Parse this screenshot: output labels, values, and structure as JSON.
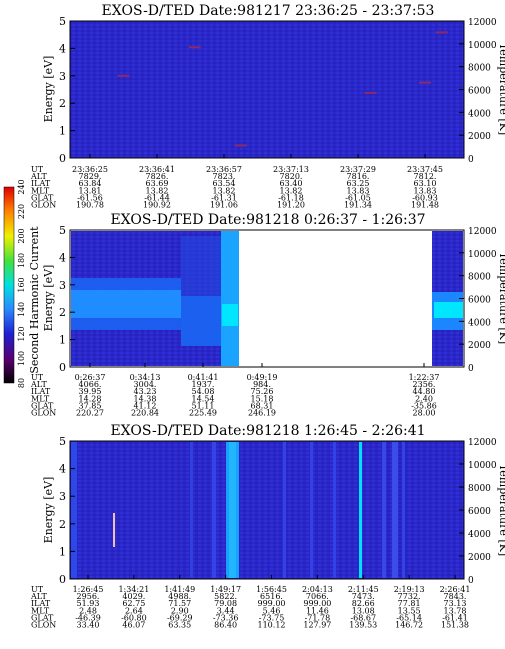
{
  "chart_data": [
    {
      "type": "heatmap",
      "title": "EXOS-D/TED   Date:981217  23:36:25 - 23:37:53",
      "ylabel": "Energy [eV]",
      "ylabel_right": "Temperature [K]",
      "ylim": [
        0,
        5
      ],
      "yticks": [
        "0",
        "1",
        "2",
        "3",
        "4",
        "5"
      ],
      "ylim_right": [
        0,
        12000
      ],
      "yticks_right": [
        "0",
        "2000",
        "4000",
        "6000",
        "8000",
        "10000",
        "12000"
      ],
      "ephemeris": {
        "labels": [
          "UT",
          "ALT",
          "ILAT",
          "MLT",
          "GLAT",
          "GLON"
        ],
        "columns": [
          [
            "23:36:25",
            "7829.",
            "63.84",
            "13.81",
            "-61.56",
            "190.78"
          ],
          [
            "23:36:41",
            "7826.",
            "63.69",
            "13.82",
            "-61.44",
            "190.92"
          ],
          [
            "23:36:57",
            "7823.",
            "63.54",
            "13.82",
            "-61.31",
            "191.06"
          ],
          [
            "23:37:13",
            "7820.",
            "63.40",
            "13.82",
            "-61.18",
            "191.20"
          ],
          [
            "23:37:29",
            "7816.",
            "63.25",
            "13.83",
            "-61.05",
            "191.34"
          ],
          [
            "23:37:45",
            "7812.",
            "63.10",
            "13.83",
            "-60.93",
            "191.48"
          ]
        ]
      },
      "description": "nearly uniform low intensity background with a few isolated point markers",
      "temperature_points": [
        {
          "ut": "23:36:33",
          "t": 7200
        },
        {
          "ut": "23:36:50",
          "t": 9700
        },
        {
          "ut": "23:37:01",
          "t": 1100
        },
        {
          "ut": "23:37:32",
          "t": 5700
        },
        {
          "ut": "23:37:45",
          "t": 6600
        },
        {
          "ut": "23:37:49",
          "t": 11000
        }
      ]
    },
    {
      "type": "heatmap",
      "title": "EXOS-D/TED   Date:981218  0:26:37 - 1:26:37",
      "ylabel": "Energy [eV]",
      "ylabel_right": "Temperature [K]",
      "ylim": [
        0,
        5
      ],
      "yticks": [
        "0",
        "1",
        "2",
        "3",
        "4",
        "5"
      ],
      "ylim_right": [
        0,
        12000
      ],
      "yticks_right": [
        "0",
        "2000",
        "4000",
        "6000",
        "8000",
        "10000",
        "12000"
      ],
      "colorbar": {
        "label": "Second Harmonic Current",
        "ticks": [
          "80",
          "100",
          "120",
          "140",
          "160",
          "180",
          "200",
          "220",
          "240"
        ]
      },
      "ephemeris": {
        "labels": [
          "UT",
          "ALT",
          "ILAT",
          "MLT",
          "GLAT",
          "GLON"
        ],
        "columns": [
          [
            "0:26:37",
            "4066.",
            "39.95",
            "14.28",
            "37.85",
            "220.27"
          ],
          [
            "0:34:13",
            "3004.",
            "43.23",
            "14.38",
            "41.12",
            "220.84"
          ],
          [
            "0:41:41",
            "1937.",
            "54.08",
            "14.54",
            "51.11",
            "225.49"
          ],
          [
            "0:49:19",
            "984.",
            "75.26",
            "15.18",
            "68.31",
            "246.19"
          ],
          [
            "1:22:37",
            "2356.",
            "44.80",
            "2.40",
            "-35.86",
            "28.00"
          ]
        ]
      },
      "description": "dense cyan-blue band near 1.5-3 eV for the first hour fraction, data gap in middle, band resumes near 1.5-2.5 eV at end"
    },
    {
      "type": "heatmap",
      "title": "EXOS-D/TED   Date:981218  1:26:45 - 2:26:41",
      "ylabel": "Energy [eV]",
      "ylabel_right": "Temperature [K]",
      "ylim": [
        0,
        5
      ],
      "yticks": [
        "0",
        "1",
        "2",
        "3",
        "4",
        "5"
      ],
      "ylim_right": [
        0,
        12000
      ],
      "yticks_right": [
        "0",
        "2000",
        "4000",
        "6000",
        "8000",
        "10000",
        "12000"
      ],
      "ephemeris": {
        "labels": [
          "UT",
          "ALT",
          "ILAT",
          "MLT",
          "GLAT",
          "GLON"
        ],
        "columns": [
          [
            "1:26:45",
            "2956.",
            "51.93",
            "2.48",
            "-46.39",
            "33.40"
          ],
          [
            "1:34:21",
            "4029.",
            "62.75",
            "2.64",
            "-60.80",
            "46.07"
          ],
          [
            "1:41:49",
            "4988.",
            "71.57",
            "2.90",
            "-69.29",
            "63.35"
          ],
          [
            "1:49:17",
            "5822.",
            "79.08",
            "3.44",
            "-73.36",
            "86.40"
          ],
          [
            "1:56:45",
            "6516.",
            "999.00",
            "5.46",
            "-73.75",
            "110.12"
          ],
          [
            "2:04:13",
            "7066.",
            "999.00",
            "11.46",
            "-71.78",
            "127.97"
          ],
          [
            "2:11:45",
            "7473.",
            "82.66",
            "13.08",
            "-68.67",
            "139.53"
          ],
          [
            "2:19:13",
            "7732.",
            "77.81",
            "13.55",
            "-65.14",
            "146.72"
          ],
          [
            "2:26:41",
            "7843.",
            "73.13",
            "13.78",
            "-61.41",
            "151.38"
          ]
        ]
      },
      "description": "mostly uniform blue background with several narrow lighter vertical stripes"
    }
  ]
}
